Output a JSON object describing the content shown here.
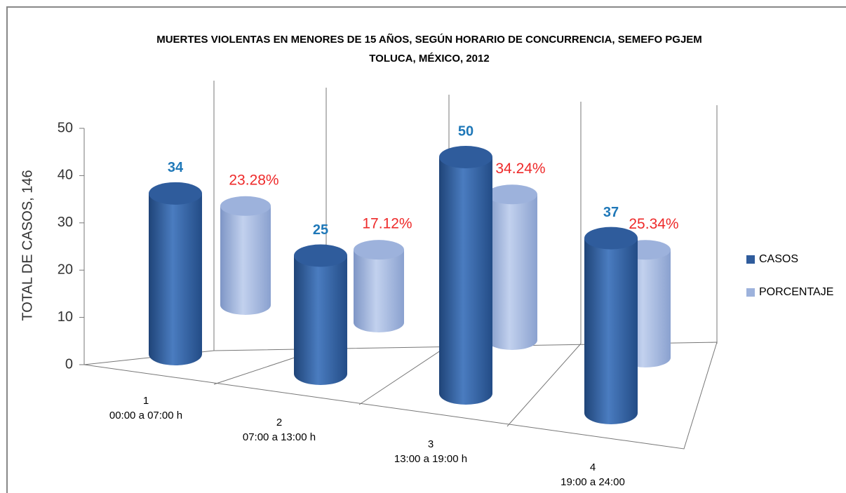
{
  "chart_data": {
    "type": "bar3d",
    "title": [
      "MUERTES VIOLENTAS EN MENORES DE 15 AÑOS, SEGÚN HORARIO DE CONCURRENCIA, SEMEFO PGJEM",
      "TOLUCA, MÉXICO, 2012"
    ],
    "y_label": "TOTAL DE CASOS, 146",
    "categories": [
      [
        "1",
        "00:00 a 07:00 h"
      ],
      [
        "2",
        "07:00 a 13:00 h"
      ],
      [
        "3",
        "13:00 a 19:00 h"
      ],
      [
        "4",
        "19:00 a 24:00"
      ]
    ],
    "series": [
      {
        "name": "CASOS",
        "color": "#2f5c9c",
        "label_color": "#1f78b8",
        "values": [
          34,
          25,
          50,
          37
        ]
      },
      {
        "name": "PORCENTAJE",
        "color": "#9db2dc",
        "label_color": "#ee2a2a",
        "values": [
          23.28,
          17.12,
          34.24,
          25.34
        ],
        "value_labels": [
          "23.28%",
          "17.12%",
          "34.24%",
          "25.34%"
        ]
      }
    ],
    "ylim": [
      0,
      50
    ],
    "yticks": [
      0,
      10,
      20,
      30,
      40,
      50
    ],
    "legend": "right"
  }
}
